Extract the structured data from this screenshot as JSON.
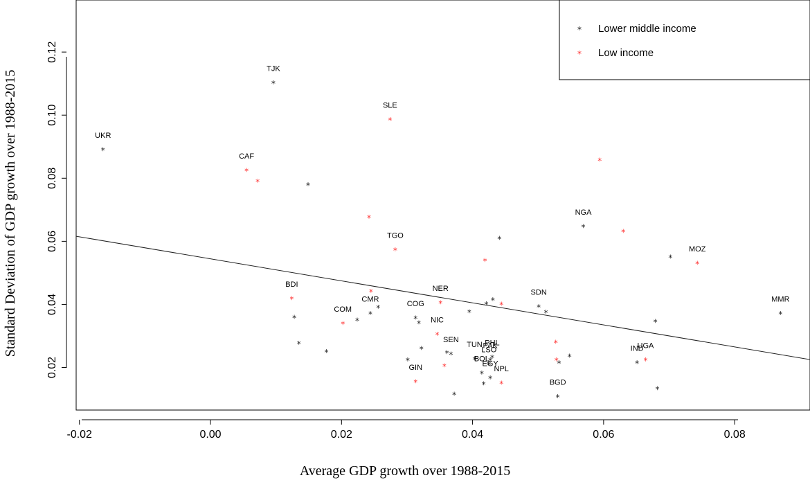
{
  "chart_data": {
    "type": "scatter",
    "title": "",
    "xlabel": "Average GDP growth over 1988-2015",
    "ylabel": "Standard Deviation of GDP growth over 1988-2015",
    "xlim": [
      -0.0205,
      0.0915
    ],
    "ylim": [
      0.0065,
      0.1365
    ],
    "xticks": [
      "-0.02",
      "0.00",
      "0.02",
      "0.04",
      "0.06",
      "0.08"
    ],
    "xtick_values": [
      -0.02,
      0.0,
      0.02,
      0.04,
      0.06,
      0.08
    ],
    "yticks": [
      "0.02",
      "0.04",
      "0.06",
      "0.08",
      "0.10",
      "0.12"
    ],
    "ytick_values": [
      0.02,
      0.04,
      0.06,
      0.08,
      0.1,
      0.12
    ],
    "grid": false,
    "legend_position": "top-right",
    "marker": "*",
    "series": [
      {
        "name": "Lower middle income",
        "color": "#222222",
        "points": [
          {
            "x": -0.0164,
            "y": 0.0888,
            "label": "UKR"
          },
          {
            "x": 0.0096,
            "y": 0.11,
            "label": "TJK"
          },
          {
            "x": 0.0149,
            "y": 0.0778,
            "label": ""
          },
          {
            "x": 0.0128,
            "y": 0.0357,
            "label": ""
          },
          {
            "x": 0.0135,
            "y": 0.0275,
            "label": ""
          },
          {
            "x": 0.0177,
            "y": 0.0248,
            "label": ""
          },
          {
            "x": 0.0224,
            "y": 0.0348,
            "label": ""
          },
          {
            "x": 0.0244,
            "y": 0.0369,
            "label": "CMR"
          },
          {
            "x": 0.0256,
            "y": 0.0389,
            "label": ""
          },
          {
            "x": 0.0313,
            "y": 0.0355,
            "label": "COG"
          },
          {
            "x": 0.0318,
            "y": 0.034,
            "label": ""
          },
          {
            "x": 0.0322,
            "y": 0.0258,
            "label": ""
          },
          {
            "x": 0.0301,
            "y": 0.0222,
            "label": ""
          },
          {
            "x": 0.0372,
            "y": 0.0113,
            "label": ""
          },
          {
            "x": 0.0367,
            "y": 0.0241,
            "label": "SEN"
          },
          {
            "x": 0.0361,
            "y": 0.0245,
            "label": ""
          },
          {
            "x": 0.0395,
            "y": 0.0375,
            "label": ""
          },
          {
            "x": 0.0421,
            "y": 0.04,
            "label": ""
          },
          {
            "x": 0.0431,
            "y": 0.0413,
            "label": ""
          },
          {
            "x": 0.0441,
            "y": 0.0607,
            "label": ""
          },
          {
            "x": 0.0403,
            "y": 0.0225,
            "label": "TUN"
          },
          {
            "x": 0.043,
            "y": 0.0231,
            "label": "PHL"
          },
          {
            "x": 0.0427,
            "y": 0.0222,
            "label": "PAK"
          },
          {
            "x": 0.0425,
            "y": 0.0209,
            "label": "LSO"
          },
          {
            "x": 0.0414,
            "y": 0.018,
            "label": "BOL"
          },
          {
            "x": 0.0427,
            "y": 0.0165,
            "label": "EGY"
          },
          {
            "x": 0.0417,
            "y": 0.0146,
            "label": ""
          },
          {
            "x": 0.0501,
            "y": 0.0391,
            "label": "SDN"
          },
          {
            "x": 0.0512,
            "y": 0.0374,
            "label": ""
          },
          {
            "x": 0.053,
            "y": 0.0106,
            "label": "BGD"
          },
          {
            "x": 0.0532,
            "y": 0.0213,
            "label": ""
          },
          {
            "x": 0.0548,
            "y": 0.0234,
            "label": ""
          },
          {
            "x": 0.0569,
            "y": 0.0645,
            "label": "NGA"
          },
          {
            "x": 0.0651,
            "y": 0.0213,
            "label": "IND"
          },
          {
            "x": 0.0679,
            "y": 0.0344,
            "label": ""
          },
          {
            "x": 0.0682,
            "y": 0.0131,
            "label": ""
          },
          {
            "x": 0.0702,
            "y": 0.0548,
            "label": ""
          },
          {
            "x": 0.087,
            "y": 0.0369,
            "label": "MMR"
          }
        ]
      },
      {
        "name": "Low income",
        "color": "#ff3333",
        "points": [
          {
            "x": 0.0055,
            "y": 0.0823,
            "label": "CAF"
          },
          {
            "x": 0.0072,
            "y": 0.0789,
            "label": ""
          },
          {
            "x": 0.0124,
            "y": 0.0416,
            "label": "BDI"
          },
          {
            "x": 0.0202,
            "y": 0.0337,
            "label": "COM"
          },
          {
            "x": 0.0242,
            "y": 0.0674,
            "label": ""
          },
          {
            "x": 0.0245,
            "y": 0.0439,
            "label": ""
          },
          {
            "x": 0.0274,
            "y": 0.0984,
            "label": "SLE"
          },
          {
            "x": 0.0282,
            "y": 0.0571,
            "label": "TGO"
          },
          {
            "x": 0.0313,
            "y": 0.0153,
            "label": "GIN"
          },
          {
            "x": 0.0346,
            "y": 0.0303,
            "label": "NIC"
          },
          {
            "x": 0.0351,
            "y": 0.0403,
            "label": "NER"
          },
          {
            "x": 0.0357,
            "y": 0.0203,
            "label": ""
          },
          {
            "x": 0.0419,
            "y": 0.0537,
            "label": ""
          },
          {
            "x": 0.0444,
            "y": 0.0399,
            "label": ""
          },
          {
            "x": 0.0444,
            "y": 0.0148,
            "label": "NPL"
          },
          {
            "x": 0.0527,
            "y": 0.0278,
            "label": ""
          },
          {
            "x": 0.0528,
            "y": 0.0222,
            "label": ""
          },
          {
            "x": 0.0594,
            "y": 0.0855,
            "label": ""
          },
          {
            "x": 0.063,
            "y": 0.0629,
            "label": ""
          },
          {
            "x": 0.0664,
            "y": 0.0222,
            "label": "UGA"
          },
          {
            "x": 0.0743,
            "y": 0.0528,
            "label": "MOZ"
          }
        ]
      }
    ],
    "fit_line": {
      "x": [
        -0.0205,
        0.0915
      ],
      "y": [
        0.0616,
        0.0225
      ],
      "color": "#222222"
    }
  }
}
